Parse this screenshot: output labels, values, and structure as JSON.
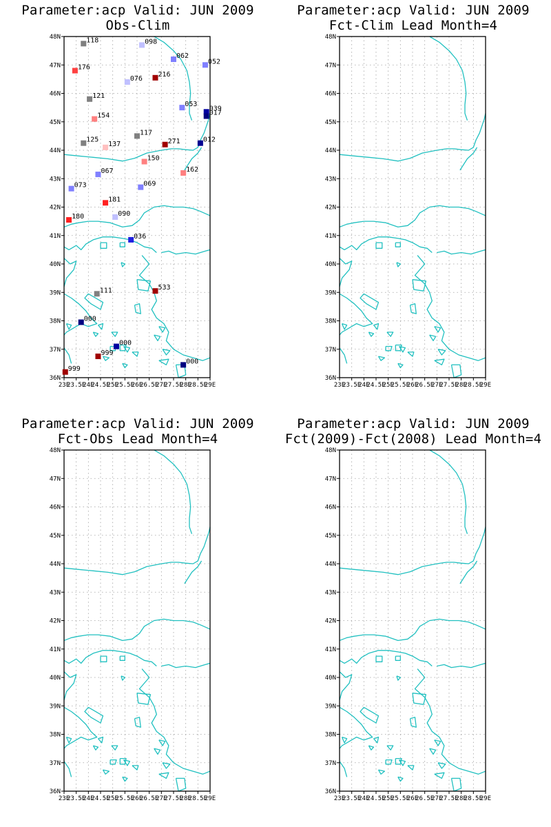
{
  "panels": [
    {
      "title_line1": "Parameter:acp Valid: JUN 2009",
      "title_line2": "Obs-Clim",
      "stations": [
        {
          "lon": 23.8,
          "lat": 47.75,
          "label": "118",
          "color": "#808080"
        },
        {
          "lon": 26.2,
          "lat": 47.7,
          "label": "098",
          "color": "#c0c0ff"
        },
        {
          "lon": 27.5,
          "lat": 47.2,
          "label": "062",
          "color": "#8080ff"
        },
        {
          "lon": 28.8,
          "lat": 47.0,
          "label": "052",
          "color": "#8080ff"
        },
        {
          "lon": 23.45,
          "lat": 46.8,
          "label": "176",
          "color": "#ff4040"
        },
        {
          "lon": 26.75,
          "lat": 46.55,
          "label": "216",
          "color": "#a00000"
        },
        {
          "lon": 25.6,
          "lat": 46.4,
          "label": "076",
          "color": "#c0c0ff"
        },
        {
          "lon": 24.05,
          "lat": 45.8,
          "label": "121",
          "color": "#808080"
        },
        {
          "lon": 27.85,
          "lat": 45.5,
          "label": "053",
          "color": "#8080ff"
        },
        {
          "lon": 28.85,
          "lat": 45.35,
          "label": "039",
          "color": "#0000a0"
        },
        {
          "lon": 28.85,
          "lat": 45.2,
          "label": "017",
          "color": "#000080"
        },
        {
          "lon": 24.25,
          "lat": 45.1,
          "label": "154",
          "color": "#ff8080"
        },
        {
          "lon": 26.0,
          "lat": 44.5,
          "label": "117",
          "color": "#808080"
        },
        {
          "lon": 23.8,
          "lat": 44.25,
          "label": "125",
          "color": "#808080"
        },
        {
          "lon": 24.7,
          "lat": 44.1,
          "label": "137",
          "color": "#ffc0c0"
        },
        {
          "lon": 27.15,
          "lat": 44.2,
          "label": "271",
          "color": "#a00000"
        },
        {
          "lon": 28.6,
          "lat": 44.25,
          "label": "012",
          "color": "#000090"
        },
        {
          "lon": 26.3,
          "lat": 43.6,
          "label": "150",
          "color": "#ff8080"
        },
        {
          "lon": 27.9,
          "lat": 43.2,
          "label": "162",
          "color": "#ff8080"
        },
        {
          "lon": 24.4,
          "lat": 43.15,
          "label": "067",
          "color": "#8080ff"
        },
        {
          "lon": 23.3,
          "lat": 42.65,
          "label": "073",
          "color": "#8080ff"
        },
        {
          "lon": 26.15,
          "lat": 42.7,
          "label": "069",
          "color": "#8080ff"
        },
        {
          "lon": 24.7,
          "lat": 42.15,
          "label": "181",
          "color": "#ff2020"
        },
        {
          "lon": 25.1,
          "lat": 41.65,
          "label": "090",
          "color": "#c0c0ff"
        },
        {
          "lon": 23.2,
          "lat": 41.55,
          "label": "180",
          "color": "#ff2020"
        },
        {
          "lon": 25.75,
          "lat": 40.85,
          "label": "036",
          "color": "#2020e0"
        },
        {
          "lon": 24.35,
          "lat": 38.95,
          "label": "111",
          "color": "#808080"
        },
        {
          "lon": 26.75,
          "lat": 39.05,
          "label": "533",
          "color": "#a00000"
        },
        {
          "lon": 23.7,
          "lat": 37.95,
          "label": "000",
          "color": "#000080"
        },
        {
          "lon": 25.15,
          "lat": 37.1,
          "label": "000",
          "color": "#0000a0"
        },
        {
          "lon": 24.4,
          "lat": 36.75,
          "label": "999",
          "color": "#a00000"
        },
        {
          "lon": 27.9,
          "lat": 36.45,
          "label": "000",
          "color": "#000080"
        },
        {
          "lon": 23.05,
          "lat": 36.2,
          "label": "999",
          "color": "#a00000"
        }
      ]
    },
    {
      "title_line1": "Parameter:acp Valid: JUN 2009",
      "title_line2": "Fct-Clim Lead Month=4",
      "stations": []
    },
    {
      "title_line1": "Parameter:acp Valid: JUN 2009",
      "title_line2": "Fct-Obs Lead Month=4",
      "stations": []
    },
    {
      "title_line1": "Parameter:acp Valid: JUN 2009",
      "title_line2": "Fct(2009)-Fct(2008) Lead Month=4",
      "stations": []
    }
  ],
  "axes": {
    "lon_range": [
      23,
      29
    ],
    "lat_range": [
      36,
      48
    ],
    "lon_ticks": [
      {
        "value": 23,
        "label": "23E"
      },
      {
        "value": 23.5,
        "label": "23.5E"
      },
      {
        "value": 24,
        "label": "24E"
      },
      {
        "value": 24.5,
        "label": "24.5E"
      },
      {
        "value": 25,
        "label": "25E"
      },
      {
        "value": 25.5,
        "label": "25.5E"
      },
      {
        "value": 26,
        "label": "26E"
      },
      {
        "value": 26.5,
        "label": "26.5E"
      },
      {
        "value": 27,
        "label": "27E"
      },
      {
        "value": 27.5,
        "label": "27.5E"
      },
      {
        "value": 28,
        "label": "28E"
      },
      {
        "value": 28.5,
        "label": "28.5E"
      },
      {
        "value": 29,
        "label": "29E"
      }
    ],
    "lat_ticks": [
      {
        "value": 48,
        "label": "48N"
      },
      {
        "value": 47,
        "label": "47N"
      },
      {
        "value": 46,
        "label": "46N"
      },
      {
        "value": 45,
        "label": "45N"
      },
      {
        "value": 44,
        "label": "44N"
      },
      {
        "value": 43,
        "label": "43N"
      },
      {
        "value": 42,
        "label": "42N"
      },
      {
        "value": 41,
        "label": "41N"
      },
      {
        "value": 40,
        "label": "40N"
      },
      {
        "value": 39,
        "label": "39N"
      },
      {
        "value": 38,
        "label": "38N"
      },
      {
        "value": 37,
        "label": "37N"
      },
      {
        "value": 36,
        "label": "36N"
      }
    ],
    "grid": true
  },
  "colors": {
    "coastline": "#20c0c0",
    "grid": "#a0a0a0",
    "frame": "#000000"
  },
  "geography": {
    "coastlines": [
      [
        [
          23.0,
          43.85
        ],
        [
          23.6,
          43.8
        ],
        [
          24.2,
          43.75
        ],
        [
          24.8,
          43.7
        ],
        [
          25.4,
          43.62
        ],
        [
          25.9,
          43.72
        ],
        [
          26.4,
          43.9
        ],
        [
          27.0,
          44.0
        ],
        [
          27.4,
          44.05
        ],
        [
          27.7,
          44.05
        ],
        [
          28.0,
          44.02
        ],
        [
          28.3,
          44.0
        ],
        [
          28.5,
          44.1
        ],
        [
          28.6,
          44.35
        ],
        [
          28.75,
          44.6
        ],
        [
          28.85,
          44.85
        ],
        [
          28.95,
          45.1
        ],
        [
          29.0,
          45.3
        ]
      ],
      [
        [
          28.25,
          45.05
        ],
        [
          28.15,
          45.3
        ],
        [
          28.15,
          45.6
        ],
        [
          28.2,
          46.0
        ],
        [
          28.15,
          46.4
        ],
        [
          28.05,
          46.8
        ],
        [
          27.8,
          47.2
        ],
        [
          27.5,
          47.5
        ],
        [
          27.1,
          47.8
        ],
        [
          26.7,
          48.0
        ]
      ],
      [
        [
          27.95,
          43.3
        ],
        [
          28.1,
          43.5
        ],
        [
          28.25,
          43.7
        ],
        [
          28.5,
          43.9
        ],
        [
          28.65,
          44.1
        ]
      ],
      [
        [
          23.0,
          41.3
        ],
        [
          23.3,
          41.4
        ],
        [
          23.6,
          41.45
        ],
        [
          24.0,
          41.5
        ],
        [
          24.4,
          41.5
        ],
        [
          24.9,
          41.45
        ],
        [
          25.4,
          41.3
        ],
        [
          25.8,
          41.35
        ],
        [
          26.1,
          41.55
        ],
        [
          26.3,
          41.8
        ],
        [
          26.7,
          42.0
        ],
        [
          27.1,
          42.05
        ],
        [
          27.5,
          42.0
        ],
        [
          27.9,
          42.0
        ],
        [
          28.3,
          41.95
        ],
        [
          28.6,
          41.85
        ],
        [
          29.0,
          41.7
        ]
      ],
      [
        [
          23.0,
          40.6
        ],
        [
          23.2,
          40.5
        ],
        [
          23.5,
          40.65
        ],
        [
          23.7,
          40.5
        ],
        [
          23.9,
          40.7
        ],
        [
          24.2,
          40.85
        ],
        [
          24.6,
          40.95
        ],
        [
          25.0,
          40.95
        ],
        [
          25.4,
          40.9
        ],
        [
          25.7,
          40.85
        ],
        [
          26.0,
          40.75
        ],
        [
          26.3,
          40.6
        ],
        [
          26.6,
          40.55
        ],
        [
          26.8,
          40.4
        ]
      ],
      [
        [
          26.2,
          40.3
        ],
        [
          26.5,
          40.0
        ],
        [
          26.1,
          39.6
        ],
        [
          26.5,
          39.3
        ],
        [
          26.7,
          39.0
        ],
        [
          26.8,
          38.7
        ],
        [
          26.6,
          38.4
        ],
        [
          26.8,
          38.1
        ],
        [
          27.1,
          37.9
        ],
        [
          27.3,
          37.6
        ],
        [
          27.2,
          37.3
        ],
        [
          27.5,
          37.0
        ],
        [
          27.9,
          36.8
        ],
        [
          28.3,
          36.7
        ],
        [
          28.7,
          36.6
        ],
        [
          29.0,
          36.7
        ]
      ],
      [
        [
          27.0,
          40.4
        ],
        [
          27.3,
          40.45
        ],
        [
          27.6,
          40.35
        ],
        [
          28.0,
          40.4
        ],
        [
          28.4,
          40.35
        ],
        [
          28.8,
          40.45
        ],
        [
          29.0,
          40.5
        ]
      ],
      [
        [
          23.0,
          40.2
        ],
        [
          23.25,
          40.0
        ],
        [
          23.5,
          40.1
        ],
        [
          23.4,
          39.8
        ],
        [
          23.1,
          39.5
        ],
        [
          23.0,
          39.2
        ]
      ],
      [
        [
          23.0,
          38.95
        ],
        [
          23.3,
          38.8
        ],
        [
          23.6,
          38.6
        ],
        [
          23.9,
          38.35
        ],
        [
          24.1,
          38.1
        ],
        [
          24.35,
          37.9
        ],
        [
          24.0,
          37.8
        ],
        [
          23.7,
          37.9
        ],
        [
          23.4,
          37.75
        ],
        [
          23.1,
          37.6
        ],
        [
          23.0,
          37.5
        ]
      ],
      [
        [
          23.0,
          37.05
        ],
        [
          23.2,
          36.8
        ],
        [
          23.3,
          36.5
        ]
      ]
    ],
    "islands": [
      [
        [
          25.3,
          40.75
        ],
        [
          25.5,
          40.75
        ],
        [
          25.5,
          40.6
        ],
        [
          25.3,
          40.6
        ],
        [
          25.3,
          40.75
        ]
      ],
      [
        [
          24.5,
          40.75
        ],
        [
          24.75,
          40.75
        ],
        [
          24.75,
          40.55
        ],
        [
          24.5,
          40.55
        ],
        [
          24.5,
          40.75
        ]
      ],
      [
        [
          25.35,
          40.05
        ],
        [
          25.5,
          40.0
        ],
        [
          25.4,
          39.9
        ],
        [
          25.35,
          40.05
        ]
      ],
      [
        [
          26.0,
          39.45
        ],
        [
          26.55,
          39.4
        ],
        [
          26.45,
          39.05
        ],
        [
          26.05,
          39.1
        ],
        [
          26.0,
          39.45
        ]
      ],
      [
        [
          25.9,
          38.55
        ],
        [
          26.1,
          38.6
        ],
        [
          26.15,
          38.25
        ],
        [
          25.95,
          38.3
        ],
        [
          25.9,
          38.55
        ]
      ],
      [
        [
          24.0,
          38.95
        ],
        [
          24.6,
          38.65
        ],
        [
          24.5,
          38.4
        ],
        [
          24.1,
          38.6
        ],
        [
          23.85,
          38.8
        ],
        [
          24.0,
          38.95
        ]
      ],
      [
        [
          24.4,
          37.85
        ],
        [
          24.6,
          37.9
        ],
        [
          24.55,
          37.7
        ],
        [
          24.4,
          37.85
        ]
      ],
      [
        [
          25.3,
          37.15
        ],
        [
          25.55,
          37.15
        ],
        [
          25.5,
          36.95
        ],
        [
          25.3,
          36.95
        ],
        [
          25.3,
          37.15
        ]
      ],
      [
        [
          24.9,
          37.1
        ],
        [
          25.15,
          37.1
        ],
        [
          25.1,
          36.95
        ],
        [
          24.9,
          36.95
        ],
        [
          24.9,
          37.1
        ]
      ],
      [
        [
          25.8,
          36.9
        ],
        [
          26.05,
          36.9
        ],
        [
          26.0,
          36.75
        ],
        [
          25.8,
          36.9
        ]
      ],
      [
        [
          26.9,
          37.8
        ],
        [
          27.15,
          37.75
        ],
        [
          27.05,
          37.6
        ],
        [
          26.9,
          37.8
        ]
      ],
      [
        [
          26.7,
          37.5
        ],
        [
          26.95,
          37.45
        ],
        [
          26.85,
          37.3
        ],
        [
          26.7,
          37.5
        ]
      ],
      [
        [
          27.05,
          37.0
        ],
        [
          27.35,
          36.95
        ],
        [
          27.2,
          36.8
        ],
        [
          27.05,
          37.0
        ]
      ],
      [
        [
          26.9,
          36.6
        ],
        [
          27.3,
          36.65
        ],
        [
          27.2,
          36.45
        ],
        [
          26.9,
          36.6
        ]
      ],
      [
        [
          27.6,
          36.45
        ],
        [
          27.95,
          36.45
        ],
        [
          28.0,
          36.1
        ],
        [
          27.7,
          36.0
        ],
        [
          27.6,
          36.45
        ]
      ],
      [
        [
          24.6,
          36.75
        ],
        [
          24.85,
          36.7
        ],
        [
          24.7,
          36.6
        ],
        [
          24.6,
          36.75
        ]
      ],
      [
        [
          25.4,
          36.5
        ],
        [
          25.6,
          36.45
        ],
        [
          25.5,
          36.35
        ],
        [
          25.4,
          36.5
        ]
      ],
      [
        [
          24.2,
          37.6
        ],
        [
          24.4,
          37.55
        ],
        [
          24.3,
          37.45
        ],
        [
          24.2,
          37.6
        ]
      ],
      [
        [
          24.95,
          37.6
        ],
        [
          25.2,
          37.6
        ],
        [
          25.1,
          37.45
        ],
        [
          24.95,
          37.6
        ]
      ],
      [
        [
          25.45,
          37.1
        ],
        [
          25.7,
          37.05
        ],
        [
          25.6,
          36.9
        ],
        [
          25.45,
          37.1
        ]
      ],
      [
        [
          23.1,
          37.9
        ],
        [
          23.3,
          37.85
        ],
        [
          23.2,
          37.7
        ],
        [
          23.1,
          37.9
        ]
      ]
    ]
  }
}
